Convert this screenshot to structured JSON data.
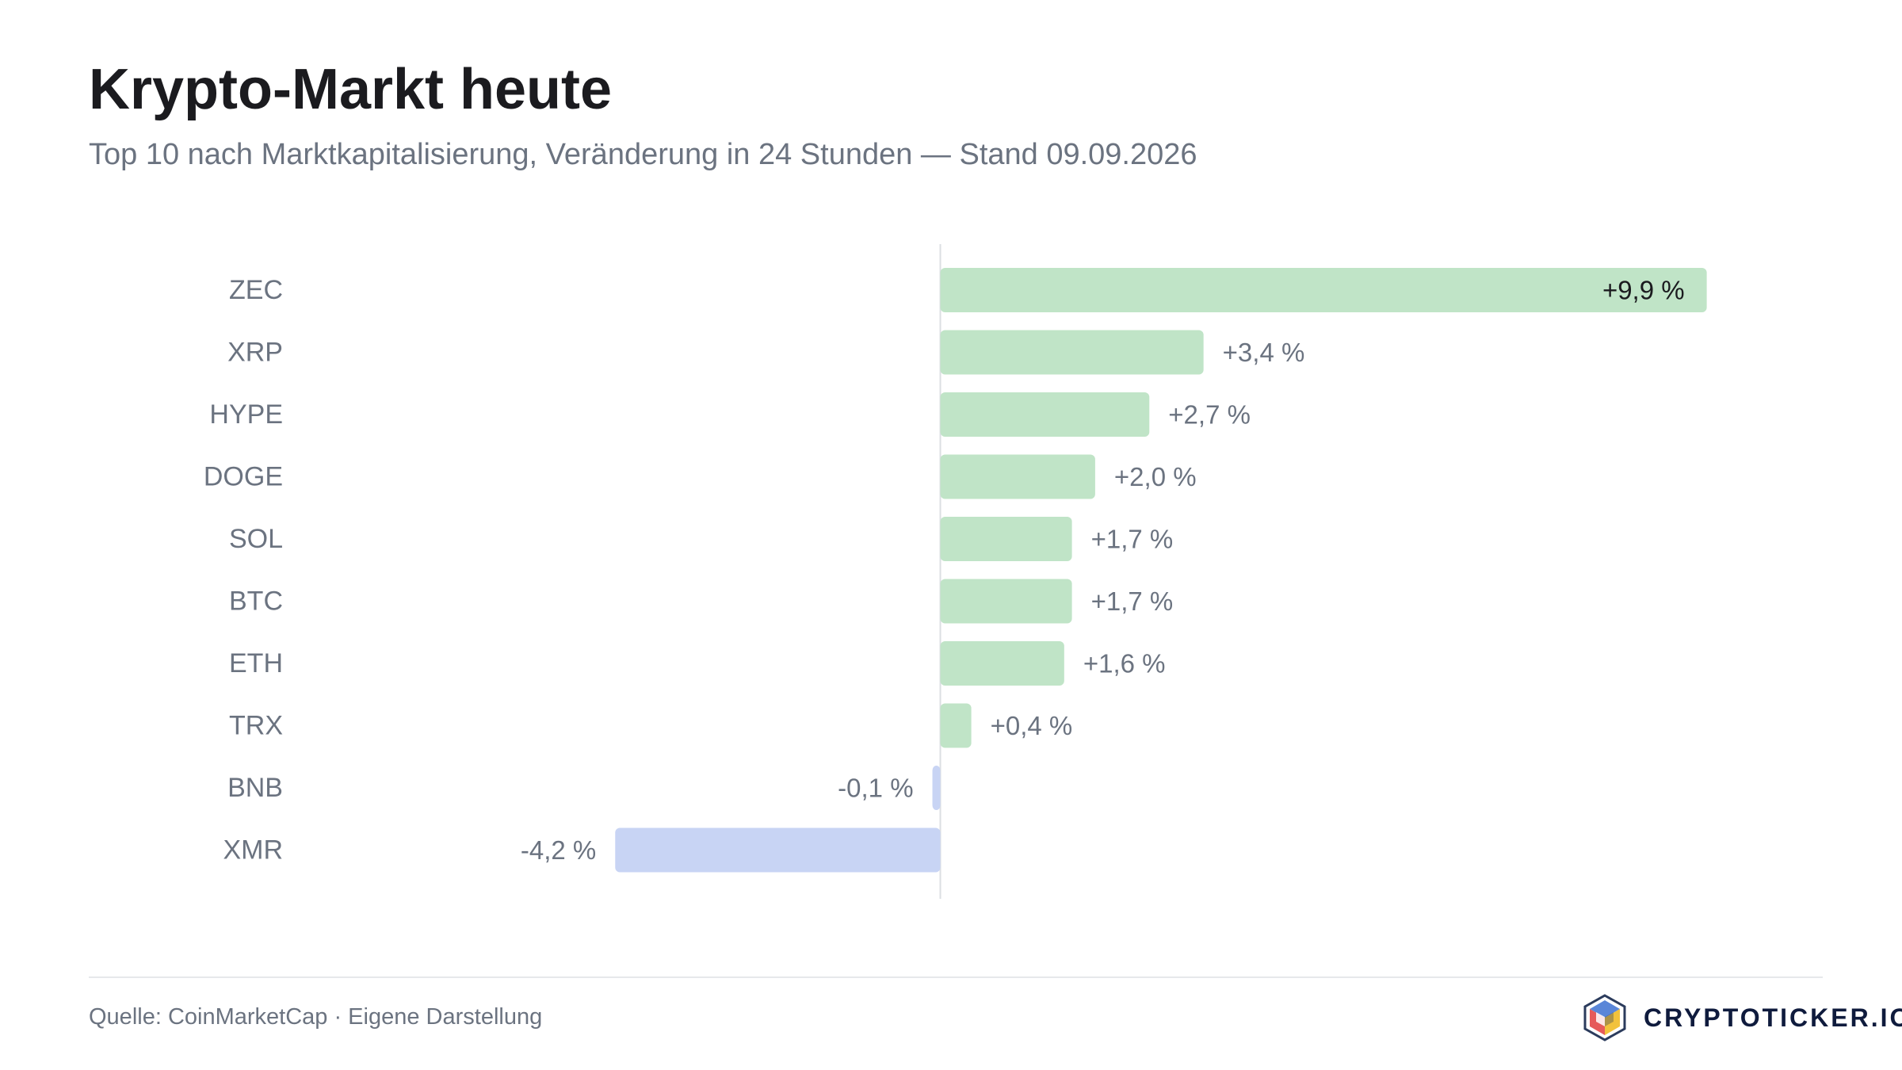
{
  "title": "Krypto-Markt heute",
  "subtitle": "Top 10 nach Marktkapitalisierung, Veränderung in 24 Stunden — Stand 09.09.2026",
  "footer": {
    "source": "Quelle: CoinMarketCap · Eigene Darstellung",
    "brand": "CRYPTOTICKER.IO"
  },
  "colors": {
    "positive": "#c0e4c7",
    "negative": "#c8d4f4",
    "axis": "#dcdfe3",
    "label": "#6b7380",
    "label_inside": "#1b1b1f"
  },
  "chart_data": {
    "type": "bar",
    "orientation": "horizontal",
    "title": "Krypto-Markt heute",
    "subtitle": "Top 10 nach Marktkapitalisierung, Veränderung in 24 Stunden — Stand 09.09.2026",
    "xlabel": "",
    "ylabel": "",
    "categories": [
      "ZEC",
      "XRP",
      "HYPE",
      "DOGE",
      "SOL",
      "BTC",
      "ETH",
      "TRX",
      "BNB",
      "XMR"
    ],
    "values": [
      9.9,
      3.4,
      2.7,
      2.0,
      1.7,
      1.7,
      1.6,
      0.4,
      -0.1,
      -4.2
    ],
    "value_labels": [
      "+9,9 %",
      "+3,4 %",
      "+2,7 %",
      "+2,0 %",
      "+1,7 %",
      "+1,7 %",
      "+1,6 %",
      "+0,4 %",
      "-0,1 %",
      "-4,2 %"
    ],
    "unit": "%",
    "xlim": [
      -11,
      10.6
    ],
    "grid": false,
    "legend": "none"
  }
}
